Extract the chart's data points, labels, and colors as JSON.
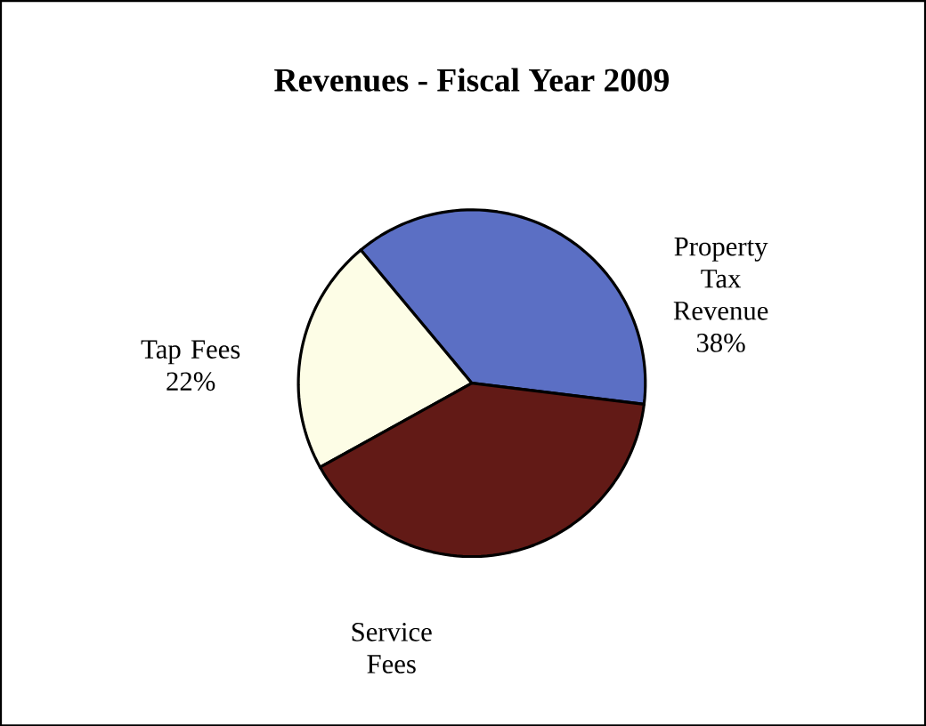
{
  "chart_data": {
    "type": "pie",
    "title": "Revenues - Fiscal Year 2009",
    "categories": [
      "Property Tax Revenue",
      "Tap Fees",
      "Service Fees"
    ],
    "values": [
      38,
      22,
      40
    ],
    "value_labels": [
      "38%",
      "22%",
      null
    ],
    "colors": [
      "#5b6fc4",
      "#fdfde6",
      "#621a16"
    ]
  }
}
